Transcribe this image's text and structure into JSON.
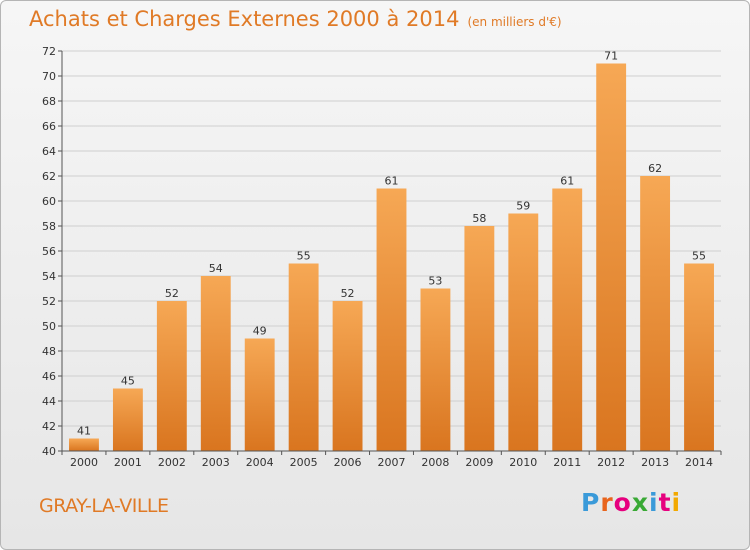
{
  "title": "Achats et Charges Externes 2000 à 2014",
  "unit": "(en milliers d'€)",
  "city": "GRAY-LA-VILLE",
  "logo": {
    "text": "Proxiti",
    "colors": [
      "#3a9ad9",
      "#e8641c",
      "#e6007e",
      "#39a935",
      "#3a9ad9",
      "#e6007e",
      "#f2a900"
    ]
  },
  "colors": {
    "bar_top": "#f6a855",
    "bar_bottom": "#d9751f",
    "title": "#e07a26",
    "grid": "#cfcfcf",
    "axis": "#555555"
  },
  "chart_data": {
    "type": "bar",
    "categories": [
      "2000",
      "2001",
      "2002",
      "2003",
      "2004",
      "2005",
      "2006",
      "2007",
      "2008",
      "2009",
      "2010",
      "2011",
      "2012",
      "2013",
      "2014"
    ],
    "values": [
      41,
      45,
      52,
      54,
      49,
      55,
      52,
      61,
      53,
      58,
      59,
      61,
      71,
      62,
      55
    ],
    "ylim": [
      40,
      72
    ],
    "yticks": [
      40,
      42,
      44,
      46,
      48,
      50,
      52,
      54,
      56,
      58,
      60,
      62,
      64,
      66,
      68,
      70,
      72
    ],
    "grid": true,
    "data_labels": true
  }
}
